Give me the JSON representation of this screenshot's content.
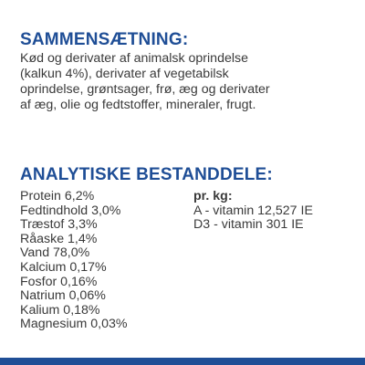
{
  "composition": {
    "heading": "SAMMENSÆTNING:",
    "lines": [
      "Kød og derivater af animalsk oprindelse",
      "(kalkun 4%), derivater af vegetabilsk",
      "oprindelse, grøntsager, frø, æg og derivater",
      "af æg, olie og fedtstoffer, mineraler, frugt."
    ]
  },
  "analytical": {
    "heading": "ANALYTISKE BESTANDDELE:",
    "nutrients": [
      "Protein 6,2%",
      "Fedtindhold 3,0%",
      "Træstof 3,3%",
      "Råaske 1,4%",
      "Vand 78,0%",
      "Kalcium 0,17%",
      "Fosfor 0,16%",
      "Natrium 0,06%",
      "Kalium 0,18%",
      "Magnesium 0,03%"
    ],
    "vitamins_heading": "pr. kg:",
    "vitamins": [
      "A - vitamin 12,527 IE",
      "D3 - vitamin 301 IE"
    ]
  },
  "colors": {
    "accent": "#1f4e96",
    "text": "#3a3a3a"
  }
}
